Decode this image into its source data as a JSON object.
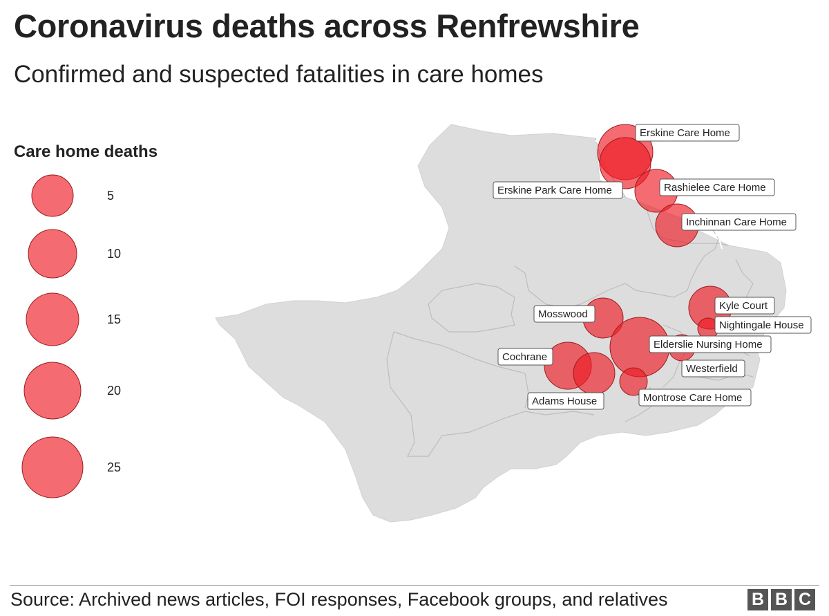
{
  "header": {
    "title": "Coronavirus deaths across Renfrewshire",
    "subtitle": "Confirmed and suspected fatalities in care homes"
  },
  "legend": {
    "title": "Care home deaths",
    "sizes": [
      5,
      10,
      15,
      20,
      25
    ]
  },
  "colors": {
    "bubble": "#ee1c25",
    "bubble_stroke": "#9a1b1b",
    "land": "#dddddd",
    "boundary": "#bdbdbd"
  },
  "map_data": {
    "region": "Renfrewshire",
    "care_homes": [
      {
        "name": "Erskine Care Home"
      },
      {
        "name": "Erskine Park Care Home"
      },
      {
        "name": "Rashielee Care Home"
      },
      {
        "name": "Inchinnan Care Home"
      },
      {
        "name": "Kyle Court"
      },
      {
        "name": "Nightingale House"
      },
      {
        "name": "Mosswood"
      },
      {
        "name": "Elderslie Nursing Home"
      },
      {
        "name": "Westerfield"
      },
      {
        "name": "Cochrane"
      },
      {
        "name": "Adams House"
      },
      {
        "name": "Montrose Care Home"
      }
    ]
  },
  "footer": {
    "source": "Source: Archived news articles, FOI responses, Facebook groups, and relatives",
    "logo_letters": [
      "B",
      "B",
      "C"
    ]
  }
}
